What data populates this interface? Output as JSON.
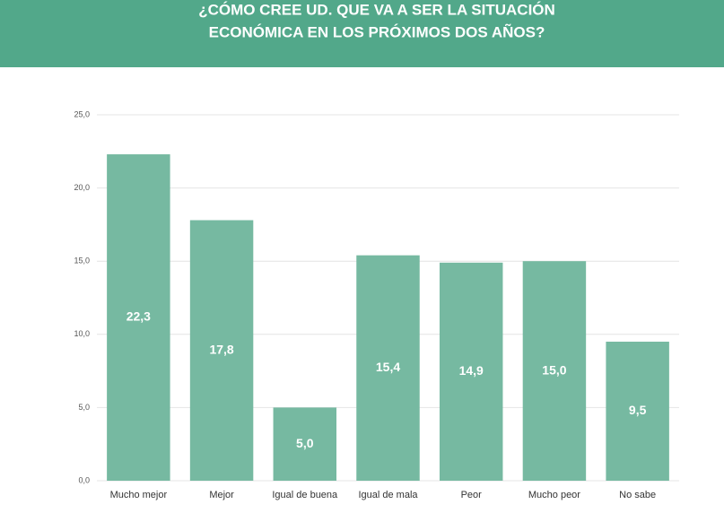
{
  "chart_data": {
    "type": "bar",
    "title": [
      "¿CÓMO CREE UD. QUE VA A SER LA SITUACIÓN",
      "ECONÓMICA EN LOS PRÓXIMOS DOS AÑOS?"
    ],
    "categories": [
      "Mucho mejor",
      "Mejor",
      "Igual de buena",
      "Igual de mala",
      "Peor",
      "Mucho peor",
      "No sabe"
    ],
    "values": [
      22.3,
      17.8,
      5.0,
      15.4,
      14.9,
      15.0,
      9.5
    ],
    "value_labels": [
      "22,3",
      "17,8",
      "5,0",
      "15,4",
      "14,9",
      "15,0",
      "9,5"
    ],
    "color": "#76b9a1",
    "ylim": [
      0,
      25
    ],
    "yticks": [
      {
        "value": 0,
        "label": "0,0"
      },
      {
        "value": 5,
        "label": "5,0"
      },
      {
        "value": 10,
        "label": "10,0"
      },
      {
        "value": 15,
        "label": "15,0"
      },
      {
        "value": 20,
        "label": "20,0"
      },
      {
        "value": 25,
        "label": "25,0"
      }
    ],
    "grid": true
  }
}
